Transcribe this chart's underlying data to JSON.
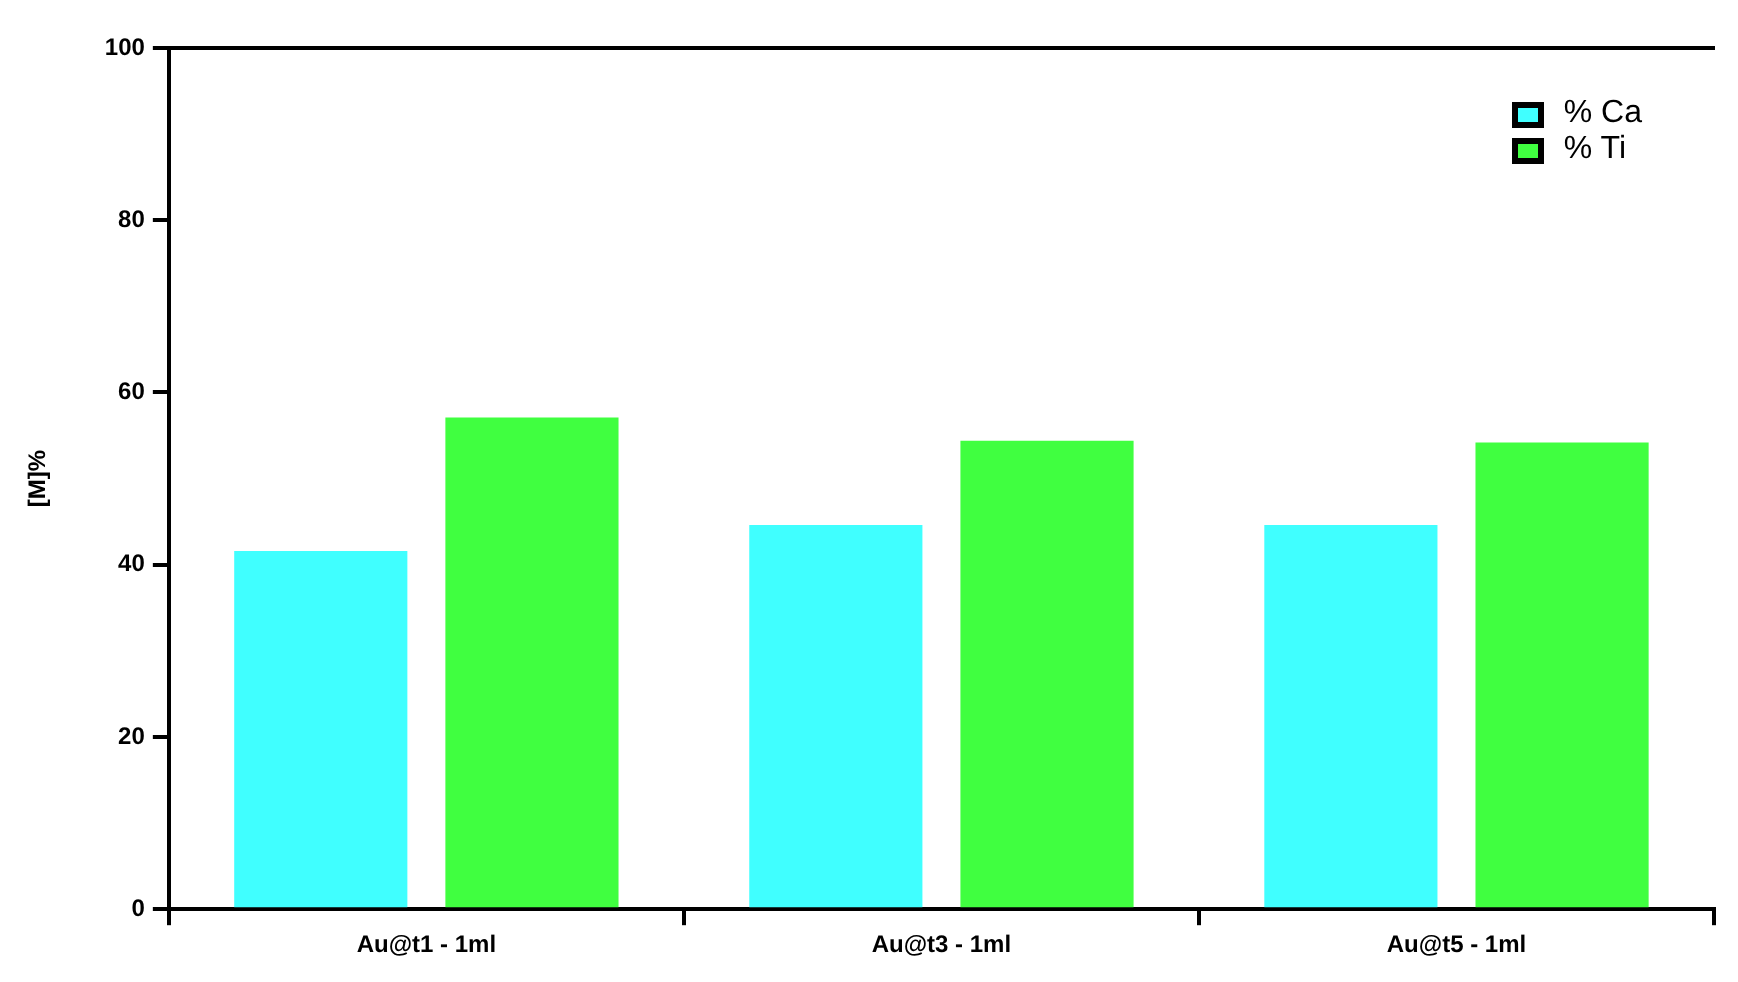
{
  "chart_data": {
    "type": "bar",
    "categories": [
      "Au@t1 - 1ml",
      "Au@t3 - 1ml",
      "Au@t5 - 1ml"
    ],
    "series": [
      {
        "name": "% Ca",
        "color": "#40ffff",
        "values": [
          41.6,
          44.6,
          44.6
        ]
      },
      {
        "name": "% Ti",
        "color": "#40ff40",
        "values": [
          57.1,
          54.4,
          54.2
        ]
      }
    ],
    "ylabel": "[M]%",
    "ylim": [
      0,
      100
    ],
    "yticks": [
      0,
      20,
      40,
      60,
      80,
      100
    ],
    "grid": false,
    "legend": "top right"
  }
}
